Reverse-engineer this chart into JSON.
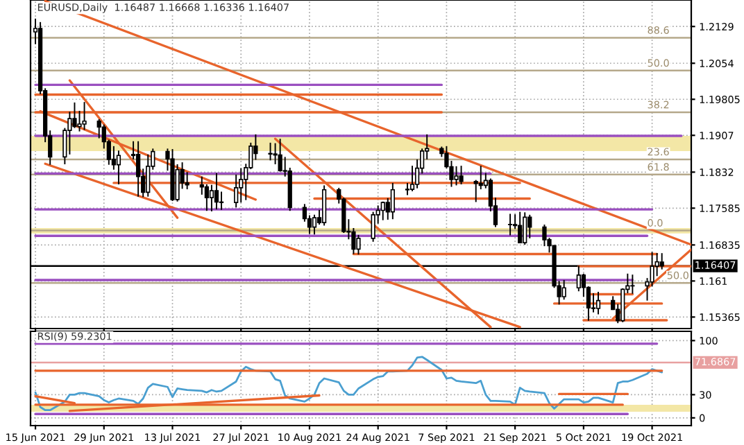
{
  "chart_data": [
    {
      "type": "candlestick",
      "title": "EURUSD,Daily  1.16487 1.16668 1.16336 1.16407",
      "x": [
        "2021-06-15",
        "2021-06-16",
        "2021-06-17",
        "2021-06-18",
        "2021-06-21",
        "2021-06-22",
        "2021-06-23",
        "2021-06-24",
        "2021-06-25",
        "2021-06-28",
        "2021-06-29",
        "2021-06-30",
        "2021-07-01",
        "2021-07-02",
        "2021-07-05",
        "2021-07-06",
        "2021-07-07",
        "2021-07-08",
        "2021-07-09",
        "2021-07-12",
        "2021-07-13",
        "2021-07-14",
        "2021-07-15",
        "2021-07-16",
        "2021-07-19",
        "2021-07-20",
        "2021-07-21",
        "2021-07-22",
        "2021-07-23",
        "2021-07-26",
        "2021-07-27",
        "2021-07-28",
        "2021-07-29",
        "2021-07-30",
        "2021-08-02",
        "2021-08-03",
        "2021-08-04",
        "2021-08-05",
        "2021-08-06",
        "2021-08-09",
        "2021-08-10",
        "2021-08-11",
        "2021-08-12",
        "2021-08-13",
        "2021-08-16",
        "2021-08-17",
        "2021-08-18",
        "2021-08-19",
        "2021-08-20",
        "2021-08-23",
        "2021-08-24",
        "2021-08-25",
        "2021-08-26",
        "2021-08-27",
        "2021-08-30",
        "2021-08-31",
        "2021-09-01",
        "2021-09-02",
        "2021-09-03",
        "2021-09-06",
        "2021-09-07",
        "2021-09-08",
        "2021-09-09",
        "2021-09-10",
        "2021-09-13",
        "2021-09-14",
        "2021-09-15",
        "2021-09-16",
        "2021-09-17",
        "2021-09-20",
        "2021-09-21",
        "2021-09-22",
        "2021-09-23",
        "2021-09-24",
        "2021-09-27",
        "2021-09-28",
        "2021-09-29",
        "2021-09-30",
        "2021-10-01",
        "2021-10-04",
        "2021-10-05",
        "2021-10-06",
        "2021-10-07",
        "2021-10-08",
        "2021-10-11",
        "2021-10-12",
        "2021-10-13",
        "2021-10-14",
        "2021-10-15",
        "2021-10-18",
        "2021-10-19",
        "2021-10-20",
        "2021-10-21"
      ],
      "ohlc": [
        [
          1.2118,
          1.2145,
          1.2093,
          1.2125
        ],
        [
          1.2125,
          1.2138,
          1.1991,
          1.1998
        ],
        [
          1.1998,
          1.2003,
          1.1893,
          1.1906
        ],
        [
          1.1906,
          1.1917,
          1.1847,
          1.1863
        ],
        [
          1.1863,
          1.1922,
          1.1848,
          1.1917
        ],
        [
          1.1917,
          1.1955,
          1.1868,
          1.1941
        ],
        [
          1.1941,
          1.1974,
          1.1922,
          1.1925
        ],
        [
          1.1925,
          1.1957,
          1.1915,
          1.193
        ],
        [
          1.193,
          1.1975,
          1.1918,
          1.1936
        ],
        [
          1.1936,
          1.194,
          1.1901,
          1.1924
        ],
        [
          1.1924,
          1.1929,
          1.188,
          1.1894
        ],
        [
          1.1894,
          1.1898,
          1.1847,
          1.1858
        ],
        [
          1.1858,
          1.1885,
          1.1837,
          1.1847
        ],
        [
          1.1847,
          1.1876,
          1.1807,
          1.1866
        ],
        [
          1.1866,
          1.1895,
          1.1858,
          1.1868
        ],
        [
          1.1868,
          1.1895,
          1.1782,
          1.1823
        ],
        [
          1.1823,
          1.1839,
          1.1781,
          1.1791
        ],
        [
          1.1791,
          1.1868,
          1.1782,
          1.1844
        ],
        [
          1.1844,
          1.188,
          1.1837,
          1.1874
        ],
        [
          1.1874,
          1.188,
          1.1835,
          1.1859
        ],
        [
          1.1859,
          1.1879,
          1.1773,
          1.1776
        ],
        [
          1.1776,
          1.1848,
          1.1772,
          1.1837
        ],
        [
          1.1837,
          1.1852,
          1.1798,
          1.181
        ],
        [
          1.181,
          1.1832,
          1.1797,
          1.1806
        ],
        [
          1.1806,
          1.1823,
          1.1786,
          1.1802
        ],
        [
          1.1802,
          1.1807,
          1.1753,
          1.178
        ],
        [
          1.178,
          1.1806,
          1.1752,
          1.1794
        ],
        [
          1.1794,
          1.183,
          1.1756,
          1.1771
        ],
        [
          1.1771,
          1.1792,
          1.1755,
          1.177
        ],
        [
          1.177,
          1.1827,
          1.176,
          1.18
        ],
        [
          1.18,
          1.184,
          1.177,
          1.1817
        ],
        [
          1.1817,
          1.1849,
          1.1775,
          1.1841
        ],
        [
          1.1841,
          1.1892,
          1.1838,
          1.1885
        ],
        [
          1.1885,
          1.1909,
          1.1857,
          1.187
        ],
        [
          1.187,
          1.1892,
          1.1856,
          1.1869
        ],
        [
          1.1869,
          1.1891,
          1.1848,
          1.1867
        ],
        [
          1.1867,
          1.19,
          1.1833,
          1.1835
        ],
        [
          1.1835,
          1.1863,
          1.1823,
          1.1834
        ],
        [
          1.1834,
          1.1841,
          1.1753,
          1.176
        ],
        [
          1.176,
          1.1767,
          1.1731,
          1.1737
        ],
        [
          1.1737,
          1.1744,
          1.1706,
          1.172
        ],
        [
          1.172,
          1.1745,
          1.1705,
          1.1739
        ],
        [
          1.1739,
          1.1755,
          1.1725,
          1.1729
        ],
        [
          1.1729,
          1.1805,
          1.1723,
          1.1796
        ],
        [
          1.1796,
          1.18,
          1.1768,
          1.1777
        ],
        [
          1.1777,
          1.178,
          1.1708,
          1.1711
        ],
        [
          1.1711,
          1.1736,
          1.1695,
          1.171
        ],
        [
          1.171,
          1.1718,
          1.1665,
          1.1675
        ],
        [
          1.1675,
          1.1704,
          1.1664,
          1.1697
        ],
        [
          1.1697,
          1.1751,
          1.169,
          1.1745
        ],
        [
          1.1745,
          1.1764,
          1.1727,
          1.1754
        ],
        [
          1.1754,
          1.1772,
          1.1734,
          1.177
        ],
        [
          1.177,
          1.1779,
          1.1735,
          1.1751
        ],
        [
          1.1751,
          1.181,
          1.1736,
          1.1796
        ],
        [
          1.1796,
          1.181,
          1.1785,
          1.1797
        ],
        [
          1.1797,
          1.1845,
          1.1793,
          1.1807
        ],
        [
          1.1807,
          1.1858,
          1.1799,
          1.184
        ],
        [
          1.184,
          1.188,
          1.1829,
          1.1875
        ],
        [
          1.1875,
          1.1909,
          1.1858,
          1.188
        ],
        [
          1.188,
          1.1884,
          1.1863,
          1.187
        ],
        [
          1.187,
          1.1885,
          1.184,
          1.1843
        ],
        [
          1.1843,
          1.1855,
          1.1802,
          1.1817
        ],
        [
          1.1817,
          1.1844,
          1.1805,
          1.1824
        ],
        [
          1.1824,
          1.1845,
          1.1807,
          1.1813
        ],
        [
          1.1813,
          1.1816,
          1.1771,
          1.1809
        ],
        [
          1.1809,
          1.1845,
          1.1797,
          1.1805
        ],
        [
          1.1805,
          1.183,
          1.1799,
          1.1815
        ],
        [
          1.1815,
          1.1819,
          1.1752,
          1.1763
        ],
        [
          1.1763,
          1.178,
          1.172,
          1.1725
        ],
        [
          1.1725,
          1.1747,
          1.1703,
          1.1725
        ],
        [
          1.1725,
          1.1746,
          1.1716,
          1.1723
        ],
        [
          1.1723,
          1.1751,
          1.1687,
          1.1688
        ],
        [
          1.1688,
          1.175,
          1.1684,
          1.174
        ],
        [
          1.174,
          1.1745,
          1.1697,
          1.172
        ],
        [
          1.172,
          1.1725,
          1.1681,
          1.1694
        ],
        [
          1.1694,
          1.1698,
          1.1668,
          1.1682
        ],
        [
          1.1682,
          1.1683,
          1.1596,
          1.16
        ],
        [
          1.16,
          1.161,
          1.1562,
          1.1578
        ],
        [
          1.1578,
          1.1612,
          1.1572,
          1.1596
        ],
        [
          1.1596,
          1.1641,
          1.1589,
          1.1622
        ],
        [
          1.1622,
          1.1625,
          1.1578,
          1.1597
        ],
        [
          1.1597,
          1.1599,
          1.1529,
          1.1555
        ],
        [
          1.1555,
          1.1585,
          1.1546,
          1.1554
        ],
        [
          1.1554,
          1.1588,
          1.1542,
          1.157
        ],
        [
          1.157,
          1.1579,
          1.1551,
          1.1552
        ],
        [
          1.1552,
          1.1563,
          1.1524,
          1.1529
        ],
        [
          1.1529,
          1.1595,
          1.1526,
          1.1593
        ],
        [
          1.1593,
          1.1625,
          1.1585,
          1.16
        ],
        [
          1.16,
          1.1623,
          1.1584,
          1.16
        ],
        [
          1.16,
          1.1616,
          1.157,
          1.1608
        ],
        [
          1.1608,
          1.1669,
          1.1599,
          1.164
        ],
        [
          1.164,
          1.1667,
          1.162,
          1.1649
        ],
        [
          1.16487,
          1.16668,
          1.16336,
          1.16407
        ]
      ],
      "series": [
        {
          "type": "line",
          "color": "#e8642c",
          "x": [
            "2021-06-17",
            "2021-10-27"
          ],
          "values": [
            1.2181,
            1.1684
          ]
        },
        {
          "type": "line",
          "color": "#e8642c",
          "x": [
            "2021-06-16",
            "2021-07-30"
          ],
          "values": [
            1.1956,
            1.1776
          ]
        },
        {
          "type": "line",
          "color": "#e8642c",
          "x": [
            "2021-06-17",
            "2021-09-22"
          ],
          "values": [
            1.1849,
            1.1516
          ]
        },
        {
          "type": "line",
          "color": "#e8642c",
          "x": [
            "2021-06-22",
            "2021-07-14"
          ],
          "values": [
            1.2019,
            1.1739
          ]
        },
        {
          "type": "line",
          "color": "#e8642c",
          "x": [
            "2021-08-03",
            "2021-09-16"
          ],
          "values": [
            1.19,
            1.1516
          ]
        },
        {
          "type": "line",
          "color": "#e8642c",
          "x": [
            "2021-10-11",
            "2021-10-27"
          ],
          "values": [
            1.1533,
            1.1674
          ]
        },
        {
          "type": "line",
          "color": "#9a4fc0",
          "x": [
            "2021-06-15",
            "2021-09-06"
          ],
          "values": [
            1.201,
            1.201
          ]
        },
        {
          "type": "line",
          "color": "#9a4fc0",
          "x": [
            "2021-06-15",
            "2021-10-25"
          ],
          "values": [
            1.1906,
            1.1906
          ]
        },
        {
          "type": "line",
          "color": "#9a4fc0",
          "x": [
            "2021-06-15",
            "2021-09-16"
          ],
          "values": [
            1.1829,
            1.1829
          ]
        },
        {
          "type": "line",
          "color": "#9a4fc0",
          "x": [
            "2021-06-15",
            "2021-10-19"
          ],
          "values": [
            1.1756,
            1.1756
          ]
        },
        {
          "type": "line",
          "color": "#9a4fc0",
          "x": [
            "2021-06-15",
            "2021-10-18"
          ],
          "values": [
            1.1702,
            1.1702
          ]
        },
        {
          "type": "line",
          "color": "#9a4fc0",
          "x": [
            "2021-06-15",
            "2021-10-15"
          ],
          "values": [
            1.1612,
            1.1612
          ]
        },
        {
          "type": "line",
          "color": "#e8642c",
          "x": [
            "2021-06-15",
            "2021-09-06"
          ],
          "values": [
            1.199,
            1.199
          ]
        },
        {
          "type": "line",
          "color": "#e8642c",
          "x": [
            "2021-06-15",
            "2021-09-06"
          ],
          "values": [
            1.1954,
            1.1954
          ]
        },
        {
          "type": "line",
          "color": "#e8642c",
          "x": [
            "2021-07-01",
            "2021-09-22"
          ],
          "values": [
            1.181,
            1.181
          ]
        },
        {
          "type": "line",
          "color": "#e8642c",
          "x": [
            "2021-08-11",
            "2021-09-24"
          ],
          "values": [
            1.1778,
            1.1778
          ]
        },
        {
          "type": "line",
          "color": "#e8642c",
          "x": [
            "2021-08-19",
            "2021-10-20"
          ],
          "values": [
            1.1665,
            1.1665
          ]
        },
        {
          "type": "line",
          "color": "#e8642c",
          "x": [
            "2021-10-04",
            "2021-10-27"
          ],
          "values": [
            1.164,
            1.164
          ]
        },
        {
          "type": "line",
          "color": "#e8642c",
          "x": [
            "2021-10-06",
            "2021-10-15"
          ],
          "values": [
            1.1583,
            1.1583
          ]
        },
        {
          "type": "line",
          "color": "#e8642c",
          "x": [
            "2021-09-29",
            "2021-10-21"
          ],
          "values": [
            1.1564,
            1.1564
          ]
        },
        {
          "type": "line",
          "color": "#e8642c",
          "x": [
            "2021-10-05",
            "2021-10-22"
          ],
          "values": [
            1.153,
            1.153
          ]
        }
      ],
      "ref_lines": [
        {
          "axis": "y",
          "value": 1.2106,
          "color": "#b5a88a"
        },
        {
          "axis": "y",
          "value": 1.2039,
          "color": "#b5a88a"
        },
        {
          "axis": "y",
          "value": 1.1954,
          "color": "#b5a88a"
        },
        {
          "axis": "y",
          "value": 1.1858,
          "color": "#b5a88a"
        },
        {
          "axis": "y",
          "value": 1.1827,
          "color": "#b5a88a"
        },
        {
          "axis": "y",
          "value": 1.1713,
          "color": "#b5a88a"
        },
        {
          "axis": "y",
          "value": 1.1606,
          "color": "#b5a88a"
        },
        {
          "axis": "y",
          "value": 1.16407,
          "label": "1.16407",
          "color": "#000000"
        }
      ],
      "annotations": [
        {
          "text": "88.6",
          "x": "2021-10-18",
          "y": 1.2106
        },
        {
          "text": "50.0",
          "x": "2021-10-18",
          "y": 1.2039
        },
        {
          "text": "38.2",
          "x": "2021-10-18",
          "y": 1.1954
        },
        {
          "text": "23.6",
          "x": "2021-10-18",
          "y": 1.1858
        },
        {
          "text": "61.8",
          "x": "2021-10-18",
          "y": 1.1827
        },
        {
          "text": "0.0",
          "x": "2021-10-18",
          "y": 1.1713
        },
        {
          "text": "50.0",
          "x": "2021-10-22",
          "y": 1.1606
        }
      ],
      "bands": [
        {
          "axis": "y",
          "from": 1.1875,
          "to": 1.1906,
          "color": "#f3e7a6"
        },
        {
          "axis": "y",
          "from": 1.1707,
          "to": 1.1718,
          "color": "#f3e7a6"
        }
      ],
      "xlim": [
        "2021-06-14",
        "2021-10-27"
      ],
      "xticks": [
        {
          "value": "2021-06-15",
          "label": null
        },
        {
          "value": "2021-06-29",
          "label": null
        },
        {
          "value": "2021-07-13",
          "label": null
        },
        {
          "value": "2021-07-27",
          "label": null
        },
        {
          "value": "2021-08-10",
          "label": null
        },
        {
          "value": "2021-08-24",
          "label": null
        },
        {
          "value": "2021-09-07",
          "label": null
        },
        {
          "value": "2021-09-21",
          "label": null
        },
        {
          "value": "2021-10-05",
          "label": null
        },
        {
          "value": "2021-10-19",
          "label": null
        }
      ],
      "ylim": [
        1.1513,
        1.2183
      ],
      "yticks": [
        1.15365,
        1.161,
        1.16835,
        1.17585,
        1.1832,
        1.1907,
        1.19805,
        1.2054,
        1.2129
      ],
      "grid": true,
      "tick_labels": "y"
    },
    {
      "type": "line",
      "title": "RSI(9) 59.2301",
      "x": [
        "2021-06-15",
        "2021-06-16",
        "2021-06-17",
        "2021-06-18",
        "2021-06-21",
        "2021-06-22",
        "2021-06-23",
        "2021-06-24",
        "2021-06-25",
        "2021-06-28",
        "2021-06-29",
        "2021-06-30",
        "2021-07-01",
        "2021-07-02",
        "2021-07-05",
        "2021-07-06",
        "2021-07-07",
        "2021-07-08",
        "2021-07-09",
        "2021-07-12",
        "2021-07-13",
        "2021-07-14",
        "2021-07-15",
        "2021-07-16",
        "2021-07-19",
        "2021-07-20",
        "2021-07-21",
        "2021-07-22",
        "2021-07-23",
        "2021-07-26",
        "2021-07-27",
        "2021-07-28",
        "2021-07-29",
        "2021-07-30",
        "2021-08-02",
        "2021-08-03",
        "2021-08-04",
        "2021-08-05",
        "2021-08-06",
        "2021-08-09",
        "2021-08-10",
        "2021-08-11",
        "2021-08-12",
        "2021-08-13",
        "2021-08-16",
        "2021-08-17",
        "2021-08-18",
        "2021-08-19",
        "2021-08-20",
        "2021-08-23",
        "2021-08-24",
        "2021-08-25",
        "2021-08-26",
        "2021-08-27",
        "2021-08-30",
        "2021-08-31",
        "2021-09-01",
        "2021-09-02",
        "2021-09-03",
        "2021-09-06",
        "2021-09-07",
        "2021-09-08",
        "2021-09-09",
        "2021-09-10",
        "2021-09-13",
        "2021-09-14",
        "2021-09-15",
        "2021-09-16",
        "2021-09-17",
        "2021-09-20",
        "2021-09-21",
        "2021-09-22",
        "2021-09-23",
        "2021-09-24",
        "2021-09-27",
        "2021-09-28",
        "2021-09-29",
        "2021-09-30",
        "2021-10-01",
        "2021-10-04",
        "2021-10-05",
        "2021-10-06",
        "2021-10-07",
        "2021-10-08",
        "2021-10-11",
        "2021-10-12",
        "2021-10-13",
        "2021-10-14",
        "2021-10-15",
        "2021-10-18",
        "2021-10-19",
        "2021-10-20",
        "2021-10-21"
      ],
      "series": [
        {
          "type": "line",
          "color": "#4a9fd0",
          "values": [
            33,
            14,
            10,
            10,
            21,
            30,
            30,
            32,
            32,
            28,
            23,
            20,
            23,
            25,
            22,
            18,
            25,
            39,
            44,
            40,
            27,
            38,
            37,
            36,
            35,
            33,
            36,
            34,
            35,
            47,
            60,
            66,
            63,
            61,
            60,
            50,
            48,
            29,
            25,
            21,
            25,
            30,
            45,
            51,
            46,
            35,
            30,
            30,
            38,
            50,
            53,
            54,
            60,
            60,
            61,
            68,
            78,
            79,
            75,
            62,
            51,
            52,
            48,
            47,
            45,
            48,
            30,
            22,
            22,
            21,
            17,
            39,
            35,
            34,
            32,
            19,
            12,
            18,
            24,
            24,
            20,
            21,
            26,
            26,
            20,
            45,
            47,
            47,
            49,
            57,
            63,
            61,
            59
          ]
        },
        {
          "type": "line",
          "color": "#9a4fc0",
          "x": [
            "2021-06-15",
            "2021-10-20"
          ],
          "values": [
            96,
            96
          ]
        },
        {
          "type": "line",
          "color": "#9a4fc0",
          "x": [
            "2021-06-15",
            "2021-10-14"
          ],
          "values": [
            5,
            5
          ]
        },
        {
          "type": "line",
          "color": "#e8642c",
          "x": [
            "2021-06-15",
            "2021-10-21"
          ],
          "values": [
            61,
            61
          ]
        },
        {
          "type": "line",
          "color": "#e8642c",
          "x": [
            "2021-06-15",
            "2021-10-13"
          ],
          "values": [
            17,
            17
          ]
        },
        {
          "type": "line",
          "color": "#e8642c",
          "x": [
            "2021-09-30",
            "2021-10-14"
          ],
          "values": [
            31,
            31
          ]
        },
        {
          "type": "line",
          "color": "#e8642c",
          "x": [
            "2021-06-15",
            "2021-06-23"
          ],
          "values": [
            28,
            19
          ]
        },
        {
          "type": "line",
          "color": "#e8642c",
          "x": [
            "2021-06-22",
            "2021-08-12"
          ],
          "values": [
            9,
            29
          ]
        }
      ],
      "ref_lines": [
        {
          "axis": "y",
          "value": 71.6867,
          "label": "71.6867",
          "color": "#e8a0a0"
        }
      ],
      "bands": [
        {
          "axis": "y",
          "from": 8,
          "to": 17,
          "color": "#f3e7a6"
        }
      ],
      "xlim": [
        "2021-06-14",
        "2021-10-27"
      ],
      "xticks": [
        {
          "value": "2021-06-15",
          "label": "15 Jun 2021"
        },
        {
          "value": "2021-06-29",
          "label": "29 Jun 2021"
        },
        {
          "value": "2021-07-13",
          "label": "13 Jul 2021"
        },
        {
          "value": "2021-07-27",
          "label": "27 Jul 2021"
        },
        {
          "value": "2021-08-10",
          "label": "10 Aug 2021"
        },
        {
          "value": "2021-08-24",
          "label": "24 Aug 2021"
        },
        {
          "value": "2021-09-07",
          "label": "7 Sep 2021"
        },
        {
          "value": "2021-09-21",
          "label": "21 Sep 2021"
        },
        {
          "value": "2021-10-05",
          "label": "5 Oct 2021"
        },
        {
          "value": "2021-10-19",
          "label": "19 Oct 2021"
        }
      ],
      "ylim": [
        -10,
        112
      ],
      "yticks": [
        0,
        30,
        100
      ],
      "grid": true
    }
  ]
}
